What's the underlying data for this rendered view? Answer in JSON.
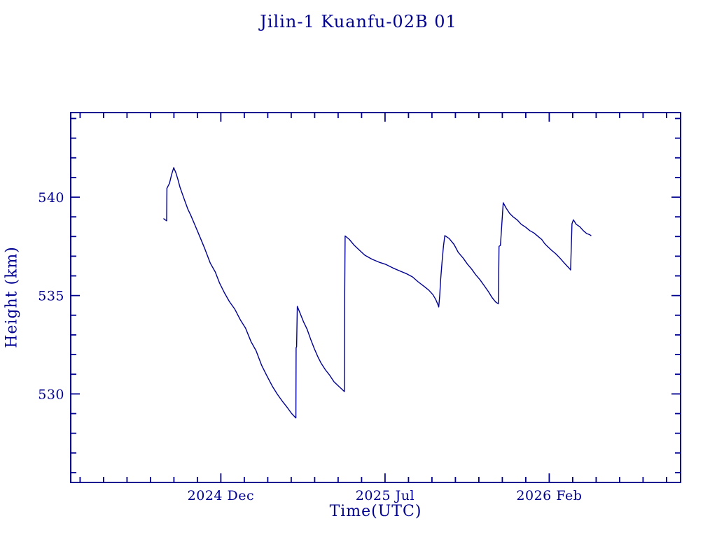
{
  "title": "Jilin-1 Kuanfu-02B 01",
  "colors": {
    "plot_blue": "#000090",
    "background": "#ffffff"
  },
  "chart_data": {
    "type": "line",
    "title": "Jilin-1 Kuanfu-02B 01",
    "xlabel": "Time(UTC)",
    "ylabel": "Height (km)",
    "legend": null,
    "grid": false,
    "x_axis": {
      "unit": "months since 2024-12-01",
      "range": [
        -6.4,
        19.6
      ],
      "major_ticks": [
        {
          "t": 0,
          "label": "2024 Dec"
        },
        {
          "t": 7,
          "label": "2025 Jul"
        },
        {
          "t": 14,
          "label": "2026 Feb"
        }
      ],
      "minor_tick_step": 1
    },
    "y_axis": {
      "range": [
        525.5,
        544.3
      ],
      "major_ticks": [
        530,
        535,
        540
      ],
      "minor_tick_step": 1
    },
    "series": [
      {
        "name": "orbital-height",
        "color": "#000090",
        "points": [
          [
            -2.43,
            538.9
          ],
          [
            -2.37,
            538.85
          ],
          [
            -2.31,
            538.8
          ],
          [
            -2.3,
            540.45
          ],
          [
            -2.19,
            540.7
          ],
          [
            -2.1,
            541.15
          ],
          [
            -2.01,
            541.5
          ],
          [
            -1.92,
            541.25
          ],
          [
            -1.83,
            540.9
          ],
          [
            -1.74,
            540.5
          ],
          [
            -1.62,
            540.1
          ],
          [
            -1.53,
            539.8
          ],
          [
            -1.41,
            539.4
          ],
          [
            -1.29,
            539.1
          ],
          [
            -1.11,
            538.6
          ],
          [
            -0.9,
            538.0
          ],
          [
            -0.69,
            537.4
          ],
          [
            -0.45,
            536.65
          ],
          [
            -0.24,
            536.2
          ],
          [
            -0.06,
            535.65
          ],
          [
            0.15,
            535.15
          ],
          [
            0.36,
            534.7
          ],
          [
            0.6,
            534.3
          ],
          [
            0.84,
            533.75
          ],
          [
            1.05,
            533.35
          ],
          [
            1.29,
            532.65
          ],
          [
            1.5,
            532.2
          ],
          [
            1.74,
            531.45
          ],
          [
            1.95,
            530.95
          ],
          [
            2.19,
            530.4
          ],
          [
            2.4,
            530.0
          ],
          [
            2.64,
            529.6
          ],
          [
            2.84,
            529.3
          ],
          [
            3.02,
            529.0
          ],
          [
            3.14,
            528.85
          ],
          [
            3.2,
            528.78
          ],
          [
            3.21,
            532.35
          ],
          [
            3.23,
            532.4
          ],
          [
            3.26,
            534.45
          ],
          [
            3.38,
            534.1
          ],
          [
            3.53,
            533.65
          ],
          [
            3.68,
            533.28
          ],
          [
            3.83,
            532.78
          ],
          [
            3.98,
            532.32
          ],
          [
            4.13,
            531.9
          ],
          [
            4.28,
            531.55
          ],
          [
            4.46,
            531.22
          ],
          [
            4.64,
            530.95
          ],
          [
            4.82,
            530.62
          ],
          [
            5.0,
            530.42
          ],
          [
            5.15,
            530.25
          ],
          [
            5.27,
            530.12
          ],
          [
            5.28,
            535.15
          ],
          [
            5.3,
            538.03
          ],
          [
            5.48,
            537.85
          ],
          [
            5.69,
            537.55
          ],
          [
            5.93,
            537.28
          ],
          [
            6.14,
            537.05
          ],
          [
            6.44,
            536.85
          ],
          [
            6.74,
            536.7
          ],
          [
            7.04,
            536.58
          ],
          [
            7.34,
            536.4
          ],
          [
            7.63,
            536.25
          ],
          [
            7.93,
            536.1
          ],
          [
            8.17,
            535.95
          ],
          [
            8.41,
            535.7
          ],
          [
            8.65,
            535.48
          ],
          [
            8.86,
            535.28
          ],
          [
            9.04,
            535.05
          ],
          [
            9.16,
            534.8
          ],
          [
            9.25,
            534.55
          ],
          [
            9.29,
            534.42
          ],
          [
            9.33,
            535.0
          ],
          [
            9.37,
            535.8
          ],
          [
            9.43,
            536.7
          ],
          [
            9.49,
            537.5
          ],
          [
            9.55,
            538.05
          ],
          [
            9.73,
            537.9
          ],
          [
            9.94,
            537.6
          ],
          [
            10.12,
            537.2
          ],
          [
            10.33,
            536.9
          ],
          [
            10.51,
            536.6
          ],
          [
            10.69,
            536.35
          ],
          [
            10.87,
            536.05
          ],
          [
            11.05,
            535.8
          ],
          [
            11.23,
            535.5
          ],
          [
            11.41,
            535.2
          ],
          [
            11.56,
            534.9
          ],
          [
            11.71,
            534.68
          ],
          [
            11.83,
            534.58
          ],
          [
            11.86,
            537.5
          ],
          [
            11.92,
            537.55
          ],
          [
            12.04,
            539.72
          ],
          [
            12.16,
            539.45
          ],
          [
            12.31,
            539.18
          ],
          [
            12.46,
            539.0
          ],
          [
            12.63,
            538.85
          ],
          [
            12.81,
            538.62
          ],
          [
            12.99,
            538.48
          ],
          [
            13.17,
            538.3
          ],
          [
            13.35,
            538.18
          ],
          [
            13.53,
            538.0
          ],
          [
            13.68,
            537.85
          ],
          [
            13.8,
            537.65
          ],
          [
            13.92,
            537.5
          ],
          [
            14.1,
            537.3
          ],
          [
            14.28,
            537.12
          ],
          [
            14.46,
            536.9
          ],
          [
            14.61,
            536.7
          ],
          [
            14.76,
            536.5
          ],
          [
            14.88,
            536.35
          ],
          [
            14.91,
            536.3
          ],
          [
            14.97,
            538.65
          ],
          [
            15.03,
            538.85
          ],
          [
            15.15,
            538.62
          ],
          [
            15.3,
            538.5
          ],
          [
            15.45,
            538.3
          ],
          [
            15.6,
            538.15
          ],
          [
            15.72,
            538.1
          ],
          [
            15.78,
            538.05
          ]
        ]
      }
    ]
  }
}
